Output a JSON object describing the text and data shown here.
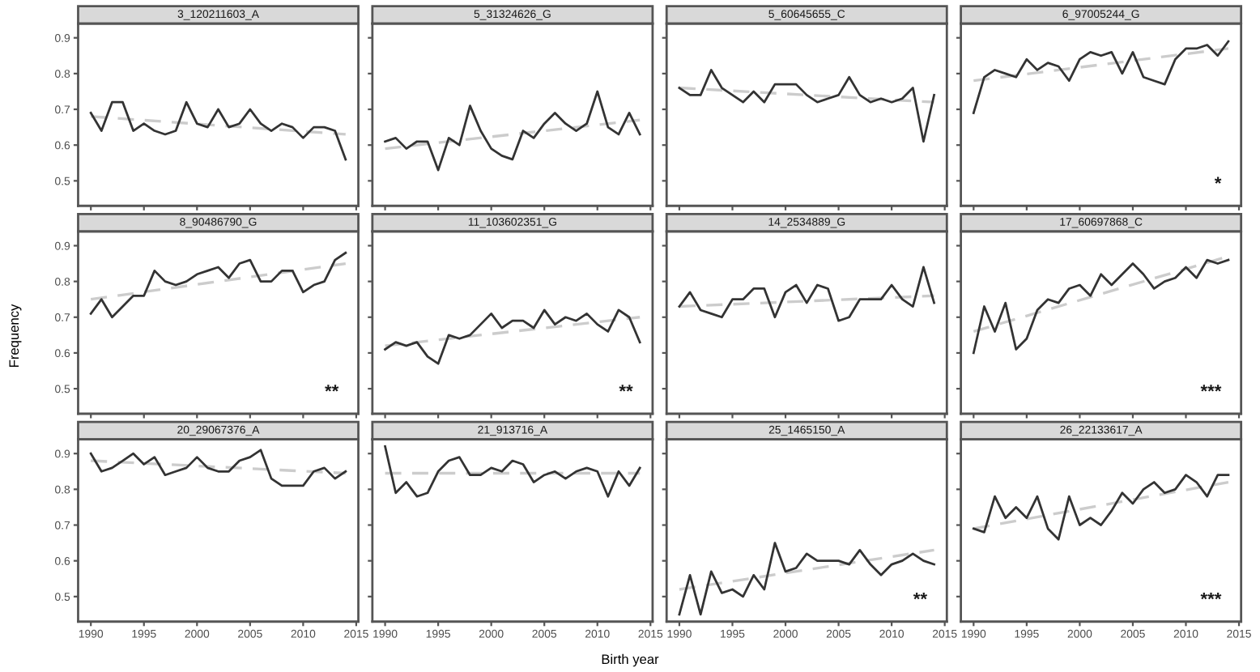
{
  "chart_data": [
    {
      "type": "line",
      "title": "3_120211603_A",
      "x": [
        1990,
        1991,
        1992,
        1993,
        1994,
        1995,
        1996,
        1997,
        1998,
        1999,
        2000,
        2001,
        2002,
        2003,
        2004,
        2005,
        2006,
        2007,
        2008,
        2009,
        2010,
        2011,
        2012,
        2013,
        2014
      ],
      "xlim": [
        1988.8,
        2015.2
      ],
      "ylim": [
        0.43,
        0.94
      ],
      "xticks": [
        1990,
        1995,
        2000,
        2005,
        2010,
        2015
      ],
      "yticks": [
        0.5,
        0.6,
        0.7,
        0.8,
        0.9
      ],
      "tick_labels": "y",
      "series": [
        {
          "color": "#333333",
          "line_style": "solid",
          "values": [
            0.69,
            0.64,
            0.72,
            0.72,
            0.64,
            0.66,
            0.64,
            0.63,
            0.64,
            0.72,
            0.66,
            0.65,
            0.7,
            0.65,
            0.66,
            0.7,
            0.66,
            0.64,
            0.66,
            0.65,
            0.62,
            0.65,
            0.65,
            0.64,
            0.56
          ]
        },
        {
          "color": "#cccccc",
          "line_style": "dashed",
          "x": [
            1990,
            2002,
            2014
          ],
          "values": [
            0.68,
            0.655,
            0.63
          ]
        }
      ]
    },
    {
      "type": "line",
      "title": "5_31324626_G",
      "x": [
        1990,
        1991,
        1992,
        1993,
        1994,
        1995,
        1996,
        1997,
        1998,
        1999,
        2000,
        2001,
        2002,
        2003,
        2004,
        2005,
        2006,
        2007,
        2008,
        2009,
        2010,
        2011,
        2012,
        2013,
        2014
      ],
      "xlim": [
        1988.8,
        2015.2
      ],
      "ylim": [
        0.43,
        0.94
      ],
      "xticks": [
        1990,
        1995,
        2000,
        2005,
        2010,
        2015
      ],
      "yticks": [
        0.5,
        0.6,
        0.7,
        0.8,
        0.9
      ],
      "tick_labels": false,
      "series": [
        {
          "color": "#333333",
          "line_style": "solid",
          "values": [
            0.61,
            0.62,
            0.59,
            0.61,
            0.61,
            0.53,
            0.62,
            0.6,
            0.71,
            0.64,
            0.59,
            0.57,
            0.56,
            0.64,
            0.62,
            0.66,
            0.69,
            0.66,
            0.64,
            0.66,
            0.75,
            0.65,
            0.63,
            0.69,
            0.63
          ]
        },
        {
          "color": "#cccccc",
          "line_style": "dashed",
          "x": [
            1990,
            2002,
            2014
          ],
          "values": [
            0.59,
            0.63,
            0.67
          ]
        }
      ]
    },
    {
      "type": "line",
      "title": "5_60645655_C",
      "x": [
        1990,
        1991,
        1992,
        1993,
        1994,
        1995,
        1996,
        1997,
        1998,
        1999,
        2000,
        2001,
        2002,
        2003,
        2004,
        2005,
        2006,
        2007,
        2008,
        2009,
        2010,
        2011,
        2012,
        2013,
        2014
      ],
      "xlim": [
        1988.8,
        2015.2
      ],
      "ylim": [
        0.43,
        0.94
      ],
      "xticks": [
        1990,
        1995,
        2000,
        2005,
        2010,
        2015
      ],
      "yticks": [
        0.5,
        0.6,
        0.7,
        0.8,
        0.9
      ],
      "tick_labels": false,
      "series": [
        {
          "color": "#333333",
          "line_style": "solid",
          "values": [
            0.76,
            0.74,
            0.74,
            0.81,
            0.76,
            0.74,
            0.72,
            0.75,
            0.72,
            0.77,
            0.77,
            0.77,
            0.74,
            0.72,
            0.73,
            0.74,
            0.79,
            0.74,
            0.72,
            0.73,
            0.72,
            0.73,
            0.76,
            0.61,
            0.74
          ]
        },
        {
          "color": "#cccccc",
          "line_style": "dashed",
          "x": [
            1990,
            2002,
            2014
          ],
          "values": [
            0.76,
            0.74,
            0.72
          ]
        }
      ]
    },
    {
      "type": "line",
      "title": "6_97005244_G",
      "x": [
        1990,
        1991,
        1992,
        1993,
        1994,
        1995,
        1996,
        1997,
        1998,
        1999,
        2000,
        2001,
        2002,
        2003,
        2004,
        2005,
        2006,
        2007,
        2008,
        2009,
        2010,
        2011,
        2012,
        2013,
        2014
      ],
      "xlim": [
        1988.8,
        2015.2
      ],
      "ylim": [
        0.43,
        0.94
      ],
      "xticks": [
        1990,
        1995,
        2000,
        2005,
        2010,
        2015
      ],
      "yticks": [
        0.5,
        0.6,
        0.7,
        0.8,
        0.9
      ],
      "tick_labels": false,
      "annotations": [
        "*"
      ],
      "series": [
        {
          "color": "#333333",
          "line_style": "solid",
          "values": [
            0.69,
            0.79,
            0.81,
            0.8,
            0.79,
            0.84,
            0.81,
            0.83,
            0.82,
            0.78,
            0.84,
            0.86,
            0.85,
            0.86,
            0.8,
            0.86,
            0.79,
            0.78,
            0.77,
            0.84,
            0.87,
            0.87,
            0.88,
            0.85,
            0.89
          ]
        },
        {
          "color": "#cccccc",
          "line_style": "dashed",
          "x": [
            1990,
            2002,
            2014
          ],
          "values": [
            0.78,
            0.825,
            0.87
          ]
        }
      ]
    },
    {
      "type": "line",
      "title": "8_90486790_G",
      "ylabel": "Frequency",
      "x": [
        1990,
        1991,
        1992,
        1993,
        1994,
        1995,
        1996,
        1997,
        1998,
        1999,
        2000,
        2001,
        2002,
        2003,
        2004,
        2005,
        2006,
        2007,
        2008,
        2009,
        2010,
        2011,
        2012,
        2013,
        2014
      ],
      "xlim": [
        1988.8,
        2015.2
      ],
      "ylim": [
        0.43,
        0.94
      ],
      "xticks": [
        1990,
        1995,
        2000,
        2005,
        2010,
        2015
      ],
      "yticks": [
        0.5,
        0.6,
        0.7,
        0.8,
        0.9
      ],
      "tick_labels": "y",
      "annotations": [
        "**"
      ],
      "series": [
        {
          "color": "#333333",
          "line_style": "solid",
          "values": [
            0.71,
            0.75,
            0.7,
            0.73,
            0.76,
            0.76,
            0.83,
            0.8,
            0.79,
            0.8,
            0.82,
            0.83,
            0.84,
            0.81,
            0.85,
            0.86,
            0.8,
            0.8,
            0.83,
            0.83,
            0.77,
            0.79,
            0.8,
            0.86,
            0.88
          ]
        },
        {
          "color": "#cccccc",
          "line_style": "dashed",
          "x": [
            1990,
            2002,
            2014
          ],
          "values": [
            0.75,
            0.8,
            0.85
          ]
        }
      ]
    },
    {
      "type": "line",
      "title": "11_103602351_G",
      "x": [
        1990,
        1991,
        1992,
        1993,
        1994,
        1995,
        1996,
        1997,
        1998,
        1999,
        2000,
        2001,
        2002,
        2003,
        2004,
        2005,
        2006,
        2007,
        2008,
        2009,
        2010,
        2011,
        2012,
        2013,
        2014
      ],
      "xlim": [
        1988.8,
        2015.2
      ],
      "ylim": [
        0.43,
        0.94
      ],
      "xticks": [
        1990,
        1995,
        2000,
        2005,
        2010,
        2015
      ],
      "yticks": [
        0.5,
        0.6,
        0.7,
        0.8,
        0.9
      ],
      "tick_labels": false,
      "annotations": [
        "**"
      ],
      "series": [
        {
          "color": "#333333",
          "line_style": "solid",
          "values": [
            0.61,
            0.63,
            0.62,
            0.63,
            0.59,
            0.57,
            0.65,
            0.64,
            0.65,
            0.68,
            0.71,
            0.67,
            0.69,
            0.69,
            0.67,
            0.72,
            0.68,
            0.7,
            0.69,
            0.71,
            0.68,
            0.66,
            0.72,
            0.7,
            0.63
          ]
        },
        {
          "color": "#cccccc",
          "line_style": "dashed",
          "x": [
            1990,
            2002,
            2014
          ],
          "values": [
            0.62,
            0.66,
            0.7
          ]
        }
      ]
    },
    {
      "type": "line",
      "title": "14_2534889_G",
      "x": [
        1990,
        1991,
        1992,
        1993,
        1994,
        1995,
        1996,
        1997,
        1998,
        1999,
        2000,
        2001,
        2002,
        2003,
        2004,
        2005,
        2006,
        2007,
        2008,
        2009,
        2010,
        2011,
        2012,
        2013,
        2014
      ],
      "xlim": [
        1988.8,
        2015.2
      ],
      "ylim": [
        0.43,
        0.94
      ],
      "xticks": [
        1990,
        1995,
        2000,
        2005,
        2010,
        2015
      ],
      "yticks": [
        0.5,
        0.6,
        0.7,
        0.8,
        0.9
      ],
      "tick_labels": false,
      "series": [
        {
          "color": "#333333",
          "line_style": "solid",
          "values": [
            0.73,
            0.77,
            0.72,
            0.71,
            0.7,
            0.75,
            0.75,
            0.78,
            0.78,
            0.7,
            0.77,
            0.79,
            0.74,
            0.79,
            0.78,
            0.69,
            0.7,
            0.75,
            0.75,
            0.75,
            0.79,
            0.75,
            0.73,
            0.84,
            0.74
          ]
        },
        {
          "color": "#cccccc",
          "line_style": "dashed",
          "x": [
            1990,
            2002,
            2014
          ],
          "values": [
            0.73,
            0.745,
            0.76
          ]
        }
      ]
    },
    {
      "type": "line",
      "title": "17_60697868_C",
      "x": [
        1990,
        1991,
        1992,
        1993,
        1994,
        1995,
        1996,
        1997,
        1998,
        1999,
        2000,
        2001,
        2002,
        2003,
        2004,
        2005,
        2006,
        2007,
        2008,
        2009,
        2010,
        2011,
        2012,
        2013,
        2014
      ],
      "xlim": [
        1988.8,
        2015.2
      ],
      "ylim": [
        0.43,
        0.94
      ],
      "xticks": [
        1990,
        1995,
        2000,
        2005,
        2010,
        2015
      ],
      "yticks": [
        0.5,
        0.6,
        0.7,
        0.8,
        0.9
      ],
      "tick_labels": false,
      "annotations": [
        "***"
      ],
      "series": [
        {
          "color": "#333333",
          "line_style": "solid",
          "values": [
            0.6,
            0.73,
            0.66,
            0.74,
            0.61,
            0.64,
            0.72,
            0.75,
            0.74,
            0.78,
            0.79,
            0.76,
            0.82,
            0.79,
            0.82,
            0.85,
            0.82,
            0.78,
            0.8,
            0.81,
            0.84,
            0.81,
            0.86,
            0.85,
            0.86
          ]
        },
        {
          "color": "#cccccc",
          "line_style": "dashed",
          "x": [
            1990,
            2002,
            2014
          ],
          "values": [
            0.66,
            0.765,
            0.87
          ]
        }
      ]
    },
    {
      "type": "line",
      "title": "20_29067376_A",
      "x": [
        1990,
        1991,
        1992,
        1993,
        1994,
        1995,
        1996,
        1997,
        1998,
        1999,
        2000,
        2001,
        2002,
        2003,
        2004,
        2005,
        2006,
        2007,
        2008,
        2009,
        2010,
        2011,
        2012,
        2013,
        2014
      ],
      "xlim": [
        1988.8,
        2015.2
      ],
      "ylim": [
        0.43,
        0.94
      ],
      "xticks": [
        1990,
        1995,
        2000,
        2005,
        2010,
        2015
      ],
      "yticks": [
        0.5,
        0.6,
        0.7,
        0.8,
        0.9
      ],
      "series": [
        {
          "color": "#333333",
          "line_style": "solid",
          "values": [
            0.9,
            0.85,
            0.86,
            0.88,
            0.9,
            0.87,
            0.89,
            0.84,
            0.85,
            0.86,
            0.89,
            0.86,
            0.85,
            0.85,
            0.88,
            0.89,
            0.91,
            0.83,
            0.81,
            0.81,
            0.81,
            0.85,
            0.86,
            0.83,
            0.85
          ]
        },
        {
          "color": "#cccccc",
          "line_style": "dashed",
          "x": [
            1990,
            2002,
            2014
          ],
          "values": [
            0.88,
            0.8625,
            0.845
          ]
        }
      ]
    },
    {
      "type": "line",
      "title": "21_913716_A",
      "xlabel": "Birth year",
      "x": [
        1990,
        1991,
        1992,
        1993,
        1994,
        1995,
        1996,
        1997,
        1998,
        1999,
        2000,
        2001,
        2002,
        2003,
        2004,
        2005,
        2006,
        2007,
        2008,
        2009,
        2010,
        2011,
        2012,
        2013,
        2014
      ],
      "xlim": [
        1988.8,
        2015.2
      ],
      "ylim": [
        0.43,
        0.94
      ],
      "xticks": [
        1990,
        1995,
        2000,
        2005,
        2010,
        2015
      ],
      "yticks": [
        0.5,
        0.6,
        0.7,
        0.8,
        0.9
      ],
      "tick_labels": "x",
      "series": [
        {
          "color": "#333333",
          "line_style": "solid",
          "values": [
            0.92,
            0.79,
            0.82,
            0.78,
            0.79,
            0.85,
            0.88,
            0.89,
            0.84,
            0.84,
            0.86,
            0.85,
            0.88,
            0.87,
            0.82,
            0.84,
            0.85,
            0.83,
            0.85,
            0.86,
            0.85,
            0.78,
            0.85,
            0.81,
            0.86
          ]
        },
        {
          "color": "#cccccc",
          "line_style": "dashed",
          "x": [
            1990,
            2002,
            2014
          ],
          "values": [
            0.845,
            0.845,
            0.845
          ]
        }
      ]
    },
    {
      "type": "line",
      "title": "25_1465150_A",
      "x": [
        1990,
        1991,
        1992,
        1993,
        1994,
        1995,
        1996,
        1997,
        1998,
        1999,
        2000,
        2001,
        2002,
        2003,
        2004,
        2005,
        2006,
        2007,
        2008,
        2009,
        2010,
        2011,
        2012,
        2013,
        2014
      ],
      "xlim": [
        1988.8,
        2015.2
      ],
      "ylim": [
        0.43,
        0.94
      ],
      "xticks": [
        1990,
        1995,
        2000,
        2005,
        2010,
        2015
      ],
      "yticks": [
        0.5,
        0.6,
        0.7,
        0.8,
        0.9
      ],
      "tick_labels": "x",
      "annotations": [
        "**"
      ],
      "series": [
        {
          "color": "#333333",
          "line_style": "solid",
          "values": [
            0.45,
            0.56,
            0.45,
            0.57,
            0.51,
            0.52,
            0.5,
            0.56,
            0.52,
            0.65,
            0.57,
            0.58,
            0.62,
            0.6,
            0.6,
            0.6,
            0.59,
            0.63,
            0.59,
            0.56,
            0.59,
            0.6,
            0.62,
            0.6,
            0.59
          ]
        },
        {
          "color": "#cccccc",
          "line_style": "dashed",
          "x": [
            1990,
            2002,
            2014
          ],
          "values": [
            0.52,
            0.575,
            0.63
          ]
        }
      ]
    },
    {
      "type": "line",
      "title": "26_22133617_A",
      "x": [
        1990,
        1991,
        1992,
        1993,
        1994,
        1995,
        1996,
        1997,
        1998,
        1999,
        2000,
        2001,
        2002,
        2003,
        2004,
        2005,
        2006,
        2007,
        2008,
        2009,
        2010,
        2011,
        2012,
        2013,
        2014
      ],
      "xlim": [
        1988.8,
        2015.2
      ],
      "ylim": [
        0.43,
        0.94
      ],
      "xticks": [
        1990,
        1995,
        2000,
        2005,
        2010,
        2015
      ],
      "yticks": [
        0.5,
        0.6,
        0.7,
        0.8,
        0.9
      ],
      "tick_labels": "x",
      "annotations": [
        "***"
      ],
      "series": [
        {
          "color": "#333333",
          "line_style": "solid",
          "values": [
            0.69,
            0.68,
            0.78,
            0.72,
            0.75,
            0.72,
            0.78,
            0.69,
            0.66,
            0.78,
            0.7,
            0.72,
            0.7,
            0.74,
            0.79,
            0.76,
            0.8,
            0.82,
            0.79,
            0.8,
            0.84,
            0.82,
            0.78,
            0.84,
            0.84
          ]
        },
        {
          "color": "#cccccc",
          "line_style": "dashed",
          "x": [
            1990,
            2002,
            2014
          ],
          "values": [
            0.69,
            0.755,
            0.82
          ]
        }
      ]
    }
  ]
}
